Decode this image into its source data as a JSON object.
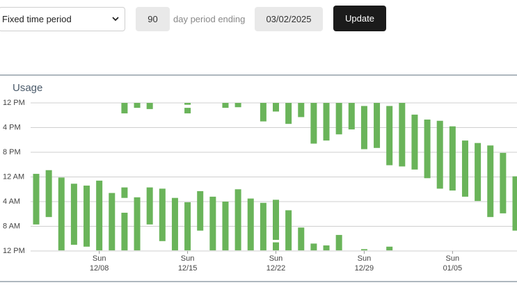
{
  "controls": {
    "mode": "Fixed time period",
    "days": "90",
    "days_label": "day period ending",
    "end_date": "03/02/2025",
    "button": "Update"
  },
  "chart_data": {
    "type": "range-bar",
    "title": "Usage",
    "categories": [
      null,
      null,
      null,
      null,
      null,
      {
        "weekday": "Sun",
        "date": "12/08"
      },
      null,
      null,
      null,
      null,
      null,
      null,
      {
        "weekday": "Sun",
        "date": "12/15"
      },
      null,
      null,
      null,
      null,
      null,
      null,
      {
        "weekday": "Sun",
        "date": "12/22"
      },
      null,
      null,
      null,
      null,
      null,
      null,
      {
        "weekday": "Sun",
        "date": "12/29"
      },
      null,
      null,
      null,
      null,
      null,
      null,
      {
        "weekday": "Sun",
        "date": "01/05"
      },
      null,
      null,
      null,
      null,
      null
    ],
    "series": [
      {
        "color": "#6ab45a",
        "low": [
          11.5,
          10.9,
          12.1,
          13.1,
          13.4,
          12.6,
          14.6,
          17.8,
          15.3,
          13.7,
          13.9,
          15.4,
          16.1,
          14.3,
          15.2,
          16.0,
          14.0,
          15.5,
          16.2,
          15.7,
          17.4,
          20.2,
          22.8,
          23.1,
          21.4,
          null,
          23.7,
          null,
          23.3,
          null,
          null,
          null,
          null,
          null,
          null,
          null,
          null,
          null,
          null
        ],
        "high": [
          19.7,
          18.5,
          23.9,
          23.0,
          23.3,
          23.9,
          23.9,
          23.9,
          23.9,
          19.7,
          22.4,
          23.9,
          23.9,
          20.7,
          23.9,
          23.9,
          23.9,
          23.9,
          23.9,
          22.2,
          23.9,
          23.9,
          23.9,
          23.9,
          23.9,
          null,
          23.9,
          null,
          23.9,
          null,
          null,
          null,
          null,
          null,
          null,
          null,
          null,
          null,
          null
        ]
      },
      {
        "color": "#6ab45a",
        "low": [
          null,
          null,
          null,
          null,
          null,
          null,
          null,
          0,
          0,
          0,
          null,
          null,
          0,
          null,
          null,
          0,
          0,
          null,
          0,
          0,
          0,
          0,
          0,
          0,
          0,
          0,
          0.5,
          0,
          0.5,
          0,
          1.9,
          2.7,
          2.9,
          3.8,
          6.1,
          6.5,
          6.9,
          8.1,
          11.9
        ],
        "high": [
          null,
          null,
          null,
          null,
          null,
          null,
          null,
          1.7,
          0.8,
          1.0,
          null,
          null,
          0.3,
          null,
          null,
          0.8,
          0.7,
          null,
          3.0,
          1.4,
          3.4,
          2.3,
          6.6,
          6.1,
          5.1,
          4.3,
          7.5,
          7.3,
          10.1,
          10.3,
          10.8,
          12.2,
          13.9,
          14.2,
          15.2,
          15.9,
          18.5,
          17.9,
          20.7
        ]
      },
      {
        "color": "#6ab45a",
        "low": [
          null,
          null,
          null,
          null,
          null,
          null,
          null,
          13.7,
          null,
          null,
          null,
          null,
          0.8,
          null,
          null,
          null,
          null,
          null,
          null,
          22.6,
          null,
          null,
          null,
          null,
          null,
          null,
          null,
          null,
          null,
          null,
          null,
          null,
          null,
          null,
          null,
          null,
          null,
          null,
          null
        ],
        "high": [
          null,
          null,
          null,
          null,
          null,
          null,
          null,
          15.4,
          null,
          null,
          null,
          null,
          1.7,
          null,
          null,
          null,
          null,
          null,
          null,
          23.9,
          null,
          null,
          null,
          null,
          null,
          null,
          null,
          null,
          null,
          null,
          null,
          null,
          null,
          null,
          null,
          null,
          null,
          null,
          null
        ]
      }
    ],
    "ylim": [
      0,
      24
    ],
    "y_inverted": true,
    "yticks": [
      {
        "value": 0,
        "label": "12 PM"
      },
      {
        "value": 4,
        "label": "4 PM"
      },
      {
        "value": 8,
        "label": "8 PM"
      },
      {
        "value": 12,
        "label": "12 AM"
      },
      {
        "value": 16,
        "label": "4 AM"
      },
      {
        "value": 20,
        "label": "8 AM"
      },
      {
        "value": 24,
        "label": "12 PM"
      }
    ],
    "grid": true
  }
}
